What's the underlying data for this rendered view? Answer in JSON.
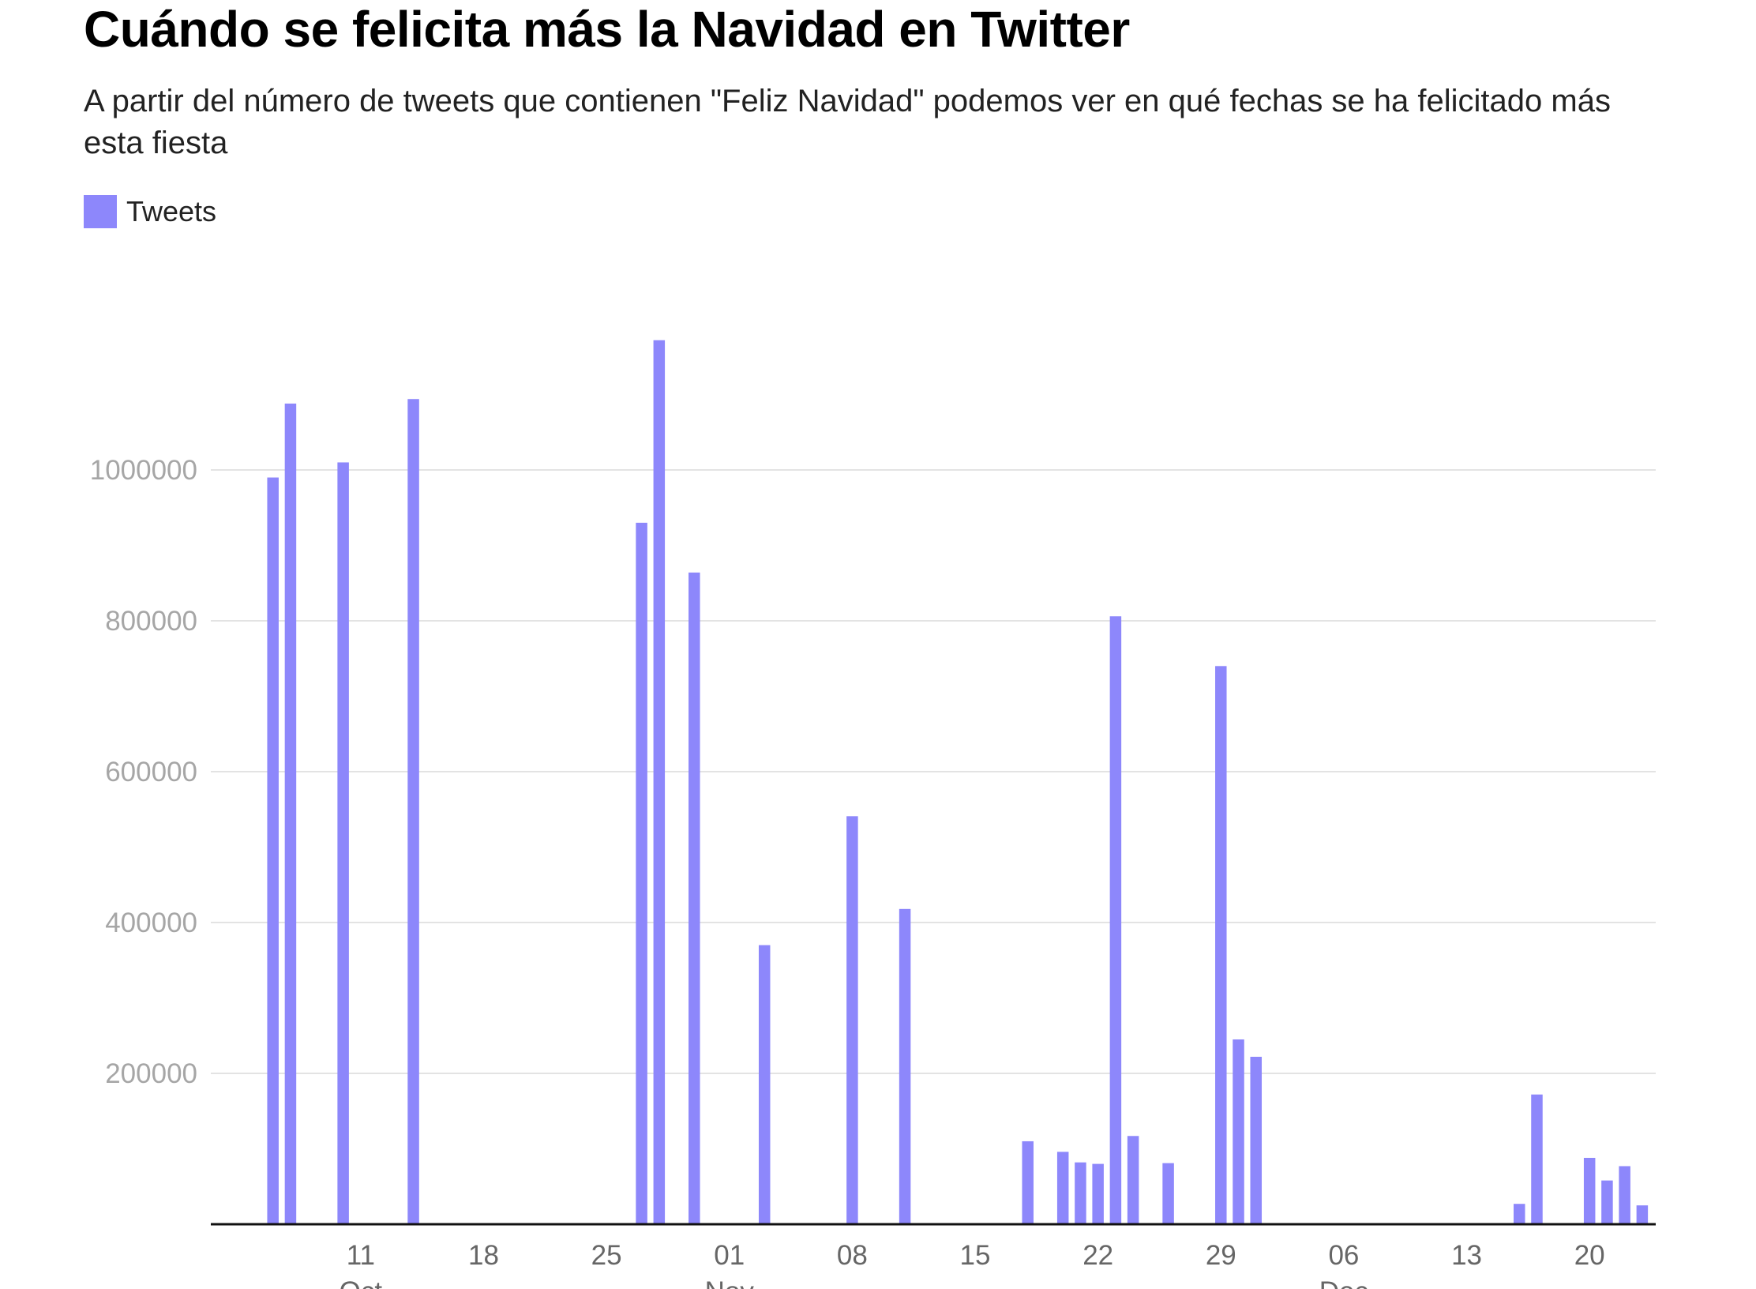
{
  "chart_data": {
    "type": "bar",
    "title": "Cuándo se felicita más la Navidad en Twitter",
    "subtitle": "A partir del número de tweets que contienen \"Feliz Navidad\" podemos ver en qué fechas se ha felicitado más esta fiesta",
    "legend": [
      {
        "name": "Tweets",
        "color": "#8d87fb",
        "position": "top-left"
      }
    ],
    "color": "#8d87fb",
    "xlabel": "",
    "ylabel": "",
    "grid": true,
    "ylim": [
      0,
      1200000
    ],
    "yticks": [
      {
        "value": 200000,
        "label": "200000"
      },
      {
        "value": 400000,
        "label": "400000"
      },
      {
        "value": 600000,
        "label": "600000"
      },
      {
        "value": 800000,
        "label": "800000"
      },
      {
        "value": 1000000,
        "label": "1000000"
      }
    ],
    "xlim": [
      "2020-10-03",
      "2020-12-23"
    ],
    "xticks": [
      {
        "date": "2020-10-11",
        "label": "11",
        "month": "Oct"
      },
      {
        "date": "2020-10-18",
        "label": "18"
      },
      {
        "date": "2020-10-25",
        "label": "25"
      },
      {
        "date": "2020-11-01",
        "label": "01",
        "month": "Nov"
      },
      {
        "date": "2020-11-08",
        "label": "08"
      },
      {
        "date": "2020-11-15",
        "label": "15"
      },
      {
        "date": "2020-11-22",
        "label": "22"
      },
      {
        "date": "2020-11-29",
        "label": "29"
      },
      {
        "date": "2020-12-06",
        "label": "06",
        "month": "Dec"
      },
      {
        "date": "2020-12-13",
        "label": "13"
      },
      {
        "date": "2020-12-20",
        "label": "20"
      }
    ],
    "series": [
      {
        "name": "Tweets",
        "points": [
          {
            "x": "2020-10-06",
            "y": 990000
          },
          {
            "x": "2020-10-07",
            "y": 1088000
          },
          {
            "x": "2020-10-10",
            "y": 1010000
          },
          {
            "x": "2020-10-14",
            "y": 1094000
          },
          {
            "x": "2020-10-27",
            "y": 930000
          },
          {
            "x": "2020-10-28",
            "y": 1172000
          },
          {
            "x": "2020-10-30",
            "y": 864000
          },
          {
            "x": "2020-11-03",
            "y": 370000
          },
          {
            "x": "2020-11-08",
            "y": 541000
          },
          {
            "x": "2020-11-11",
            "y": 418000
          },
          {
            "x": "2020-11-18",
            "y": 110000
          },
          {
            "x": "2020-11-20",
            "y": 96000
          },
          {
            "x": "2020-11-21",
            "y": 82000
          },
          {
            "x": "2020-11-22",
            "y": 80000
          },
          {
            "x": "2020-11-23",
            "y": 806000
          },
          {
            "x": "2020-11-24",
            "y": 117000
          },
          {
            "x": "2020-11-26",
            "y": 81000
          },
          {
            "x": "2020-11-29",
            "y": 740000
          },
          {
            "x": "2020-11-30",
            "y": 245000
          },
          {
            "x": "2020-12-01",
            "y": 222000
          },
          {
            "x": "2020-12-16",
            "y": 27000
          },
          {
            "x": "2020-12-17",
            "y": 172000
          },
          {
            "x": "2020-12-20",
            "y": 88000
          },
          {
            "x": "2020-12-21",
            "y": 58000
          },
          {
            "x": "2020-12-22",
            "y": 77000
          },
          {
            "x": "2020-12-23",
            "y": 25000
          }
        ]
      }
    ]
  }
}
